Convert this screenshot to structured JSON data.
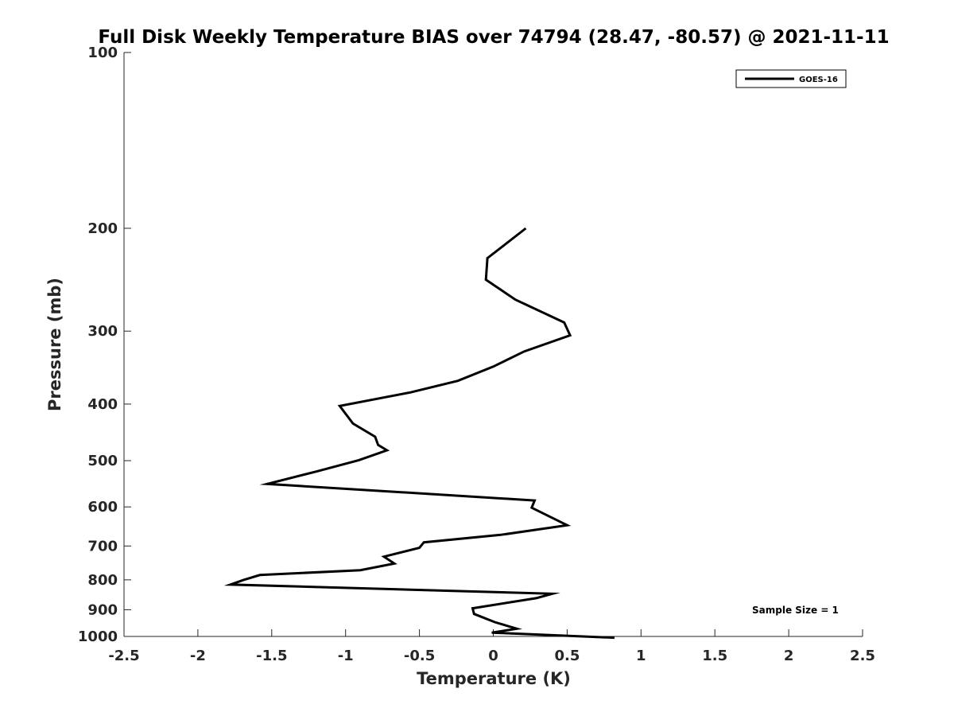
{
  "chart_data": {
    "type": "line",
    "title": "Full Disk Weekly Temperature BIAS over 74794 (28.47, -80.57) @ 2021-11-11",
    "xlabel": "Temperature (K)",
    "ylabel": "Pressure (mb)",
    "xlim": [
      -2.5,
      2.5
    ],
    "ylim": [
      100,
      1000
    ],
    "yscale": "log",
    "y_reversed": true,
    "grid": false,
    "legend_position": "top-right",
    "xticks": [
      -2.5,
      -2,
      -1.5,
      -1,
      -0.5,
      0,
      0.5,
      1,
      1.5,
      2,
      2.5
    ],
    "xtick_labels": [
      "-2.5",
      "-2",
      "-1.5",
      "-1",
      "-0.5",
      "0",
      "0.5",
      "1",
      "1.5",
      "2",
      "2.5"
    ],
    "yticks": [
      100,
      200,
      300,
      400,
      500,
      600,
      700,
      800,
      900,
      1000
    ],
    "ytick_labels": [
      "100",
      "200",
      "300",
      "400",
      "500",
      "600",
      "700",
      "800",
      "900",
      "1000"
    ],
    "series": [
      {
        "name": "GOES-16",
        "color": "#000000",
        "x": [
          0.22,
          -0.04,
          -0.05,
          0.15,
          0.48,
          0.52,
          0.21,
          0.0,
          -0.24,
          -0.56,
          -1.04,
          -0.95,
          -0.8,
          -0.78,
          -0.72,
          -0.91,
          -1.2,
          -1.53,
          0.28,
          0.26,
          0.5,
          0.05,
          -0.47,
          -0.5,
          -0.74,
          -0.67,
          -0.9,
          -1.58,
          -1.69,
          -1.78,
          0.4,
          0.29,
          -0.14,
          -0.13,
          0.01,
          0.16,
          -0.01,
          0.82
        ],
        "y": [
          200,
          225,
          245,
          265,
          290,
          305,
          325,
          345,
          365,
          382,
          403,
          432,
          455,
          470,
          480,
          499,
          522,
          548,
          585,
          602,
          645,
          670,
          690,
          705,
          730,
          750,
          770,
          785,
          800,
          815,
          845,
          860,
          895,
          915,
          945,
          970,
          985,
          1005
        ]
      }
    ],
    "annotations": [
      "Sample Size = 1"
    ]
  }
}
